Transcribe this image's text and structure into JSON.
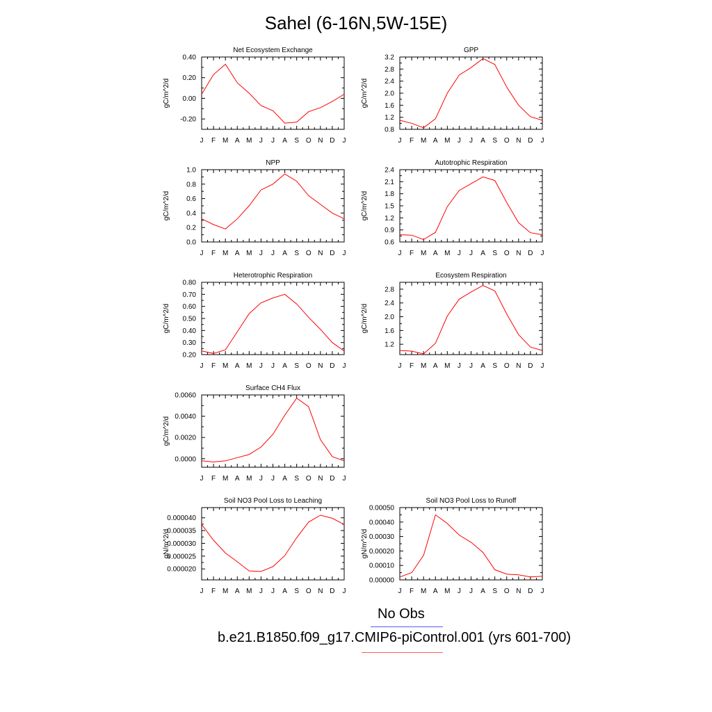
{
  "page_title": "Sahel (6-16N,5W-15E)",
  "legend": {
    "obs_label": "No Obs",
    "obs_color": "#5a5aff",
    "model_label": "b.e21.B1850.f09_g17.CMIP6-piControl.001 (yrs 601-700)",
    "model_color": "#ff5a5a"
  },
  "colors": {
    "series": "#ff0000",
    "axis": "#000000"
  },
  "chart_data": [
    {
      "type": "line",
      "title": "Net Ecosystem Exchange",
      "ylabel": "gC/m^2/d",
      "x": [
        "J",
        "F",
        "M",
        "A",
        "M",
        "J",
        "J",
        "A",
        "S",
        "O",
        "N",
        "D",
        "J"
      ],
      "series": [
        {
          "values": [
            0.04,
            0.23,
            0.33,
            0.15,
            0.05,
            -0.07,
            -0.12,
            -0.24,
            -0.23,
            -0.13,
            -0.09,
            -0.03,
            0.04
          ]
        }
      ],
      "ylim": [
        -0.3,
        0.4
      ],
      "yticks": [
        -0.2,
        0.0,
        0.2,
        0.4
      ],
      "ytick_labels": [
        "-0.20",
        "0.00",
        "0.20",
        "0.40"
      ]
    },
    {
      "type": "line",
      "title": "GPP",
      "ylabel": "gC/m^2/d",
      "x": [
        "J",
        "F",
        "M",
        "A",
        "M",
        "J",
        "J",
        "A",
        "S",
        "O",
        "N",
        "D",
        "J"
      ],
      "series": [
        {
          "values": [
            1.1,
            1.0,
            0.85,
            1.15,
            2.0,
            2.6,
            2.85,
            3.15,
            2.95,
            2.2,
            1.6,
            1.22,
            1.1
          ]
        }
      ],
      "ylim": [
        0.8,
        3.2
      ],
      "yticks": [
        0.8,
        1.2,
        1.6,
        2.0,
        2.4,
        2.8,
        3.2
      ],
      "ytick_labels": [
        "0.8",
        "1.2",
        "1.6",
        "2.0",
        "2.4",
        "2.8",
        "3.2"
      ]
    },
    {
      "type": "line",
      "title": "NPP",
      "ylabel": "gC/m^2/d",
      "x": [
        "J",
        "F",
        "M",
        "A",
        "M",
        "J",
        "J",
        "A",
        "S",
        "O",
        "N",
        "D",
        "J"
      ],
      "series": [
        {
          "values": [
            0.32,
            0.24,
            0.18,
            0.32,
            0.5,
            0.72,
            0.8,
            0.94,
            0.84,
            0.64,
            0.52,
            0.4,
            0.32
          ]
        }
      ],
      "ylim": [
        0.0,
        1.0
      ],
      "yticks": [
        0.0,
        0.2,
        0.4,
        0.6,
        0.8,
        1.0
      ],
      "ytick_labels": [
        "0.0",
        "0.2",
        "0.4",
        "0.6",
        "0.8",
        "1.0"
      ]
    },
    {
      "type": "line",
      "title": "Autotrophic Respiration",
      "ylabel": "gC/m^2/d",
      "x": [
        "J",
        "F",
        "M",
        "A",
        "M",
        "J",
        "J",
        "A",
        "S",
        "O",
        "N",
        "D",
        "J"
      ],
      "series": [
        {
          "values": [
            0.78,
            0.77,
            0.66,
            0.84,
            1.48,
            1.88,
            2.05,
            2.22,
            2.13,
            1.58,
            1.08,
            0.83,
            0.78
          ]
        }
      ],
      "ylim": [
        0.6,
        2.4
      ],
      "yticks": [
        0.6,
        0.9,
        1.2,
        1.5,
        1.8,
        2.1,
        2.4
      ],
      "ytick_labels": [
        "0.6",
        "0.9",
        "1.2",
        "1.5",
        "1.8",
        "2.1",
        "2.4"
      ]
    },
    {
      "type": "line",
      "title": "Heterotrophic Respiration",
      "ylabel": "gC/m^2/d",
      "x": [
        "J",
        "F",
        "M",
        "A",
        "M",
        "J",
        "J",
        "A",
        "S",
        "O",
        "N",
        "D",
        "J"
      ],
      "series": [
        {
          "values": [
            0.23,
            0.21,
            0.24,
            0.39,
            0.54,
            0.63,
            0.67,
            0.7,
            0.62,
            0.51,
            0.41,
            0.3,
            0.23
          ]
        }
      ],
      "ylim": [
        0.2,
        0.8
      ],
      "yticks": [
        0.2,
        0.3,
        0.4,
        0.5,
        0.6,
        0.7,
        0.8
      ],
      "ytick_labels": [
        "0.20",
        "0.30",
        "0.40",
        "0.50",
        "0.60",
        "0.70",
        "0.80"
      ]
    },
    {
      "type": "line",
      "title": "Ecosystem Respiration",
      "ylabel": "gC/m^2/d",
      "x": [
        "J",
        "F",
        "M",
        "A",
        "M",
        "J",
        "J",
        "A",
        "S",
        "O",
        "N",
        "D",
        "J"
      ],
      "series": [
        {
          "values": [
            1.02,
            1.0,
            0.92,
            1.23,
            2.02,
            2.51,
            2.72,
            2.91,
            2.75,
            2.08,
            1.48,
            1.12,
            1.02
          ]
        }
      ],
      "ylim": [
        0.9,
        3.0
      ],
      "yticks": [
        1.2,
        1.6,
        2.0,
        2.4,
        2.8
      ],
      "ytick_labels": [
        "1.2",
        "1.6",
        "2.0",
        "2.4",
        "2.8"
      ]
    },
    {
      "type": "line",
      "title": "Surface CH4 Flux",
      "ylabel": "gC/m^2/d",
      "x": [
        "J",
        "F",
        "M",
        "A",
        "M",
        "J",
        "J",
        "A",
        "S",
        "O",
        "N",
        "D",
        "J"
      ],
      "series": [
        {
          "values": [
            -0.0002,
            -0.0003,
            -0.0002,
            0.0001,
            0.0004,
            0.0011,
            0.0023,
            0.0041,
            0.0057,
            0.0049,
            0.0018,
            0.0002,
            -0.0002
          ]
        }
      ],
      "ylim": [
        -0.0008,
        0.006
      ],
      "yticks": [
        0.0,
        0.002,
        0.004,
        0.006
      ],
      "ytick_labels": [
        "0.0000",
        "0.0020",
        "0.0040",
        "0.0060"
      ]
    },
    {
      "type": "line",
      "title": "Soil NO3 Pool Loss to Leaching",
      "ylabel": "gN/m^2/d",
      "x": [
        "J",
        "F",
        "M",
        "A",
        "M",
        "J",
        "J",
        "A",
        "S",
        "O",
        "N",
        "D",
        "J"
      ],
      "series": [
        {
          "values": [
            3.74e-05,
            3.12e-05,
            2.62e-05,
            2.28e-05,
            1.92e-05,
            1.9e-05,
            2.09e-05,
            2.52e-05,
            3.22e-05,
            3.83e-05,
            4.1e-05,
            3.98e-05,
            3.74e-05
          ]
        }
      ],
      "ylim": [
        1.57e-05,
        4.4e-05
      ],
      "yticks": [
        2e-05,
        2.5e-05,
        3e-05,
        3.5e-05,
        4e-05
      ],
      "ytick_labels": [
        "0.000020",
        "0.000025",
        "0.000030",
        "0.000035",
        "0.000040"
      ]
    },
    {
      "type": "line",
      "title": "Soil NO3 Pool Loss to Runoff",
      "ylabel": "gN/m^2/d",
      "x": [
        "J",
        "F",
        "M",
        "A",
        "M",
        "J",
        "J",
        "A",
        "S",
        "O",
        "N",
        "D",
        "J"
      ],
      "series": [
        {
          "values": [
            2e-05,
            5e-05,
            0.00017,
            0.00045,
            0.00039,
            0.00031,
            0.00026,
            0.00019,
            7e-05,
            4e-05,
            3.5e-05,
            2e-05,
            2.5e-05
          ]
        }
      ],
      "ylim": [
        0.0,
        0.0005
      ],
      "yticks": [
        0.0,
        0.0001,
        0.0002,
        0.0003,
        0.0004,
        0.0005
      ],
      "ytick_labels": [
        "0.00000",
        "0.00010",
        "0.00020",
        "0.00030",
        "0.00040",
        "0.00050"
      ]
    }
  ]
}
